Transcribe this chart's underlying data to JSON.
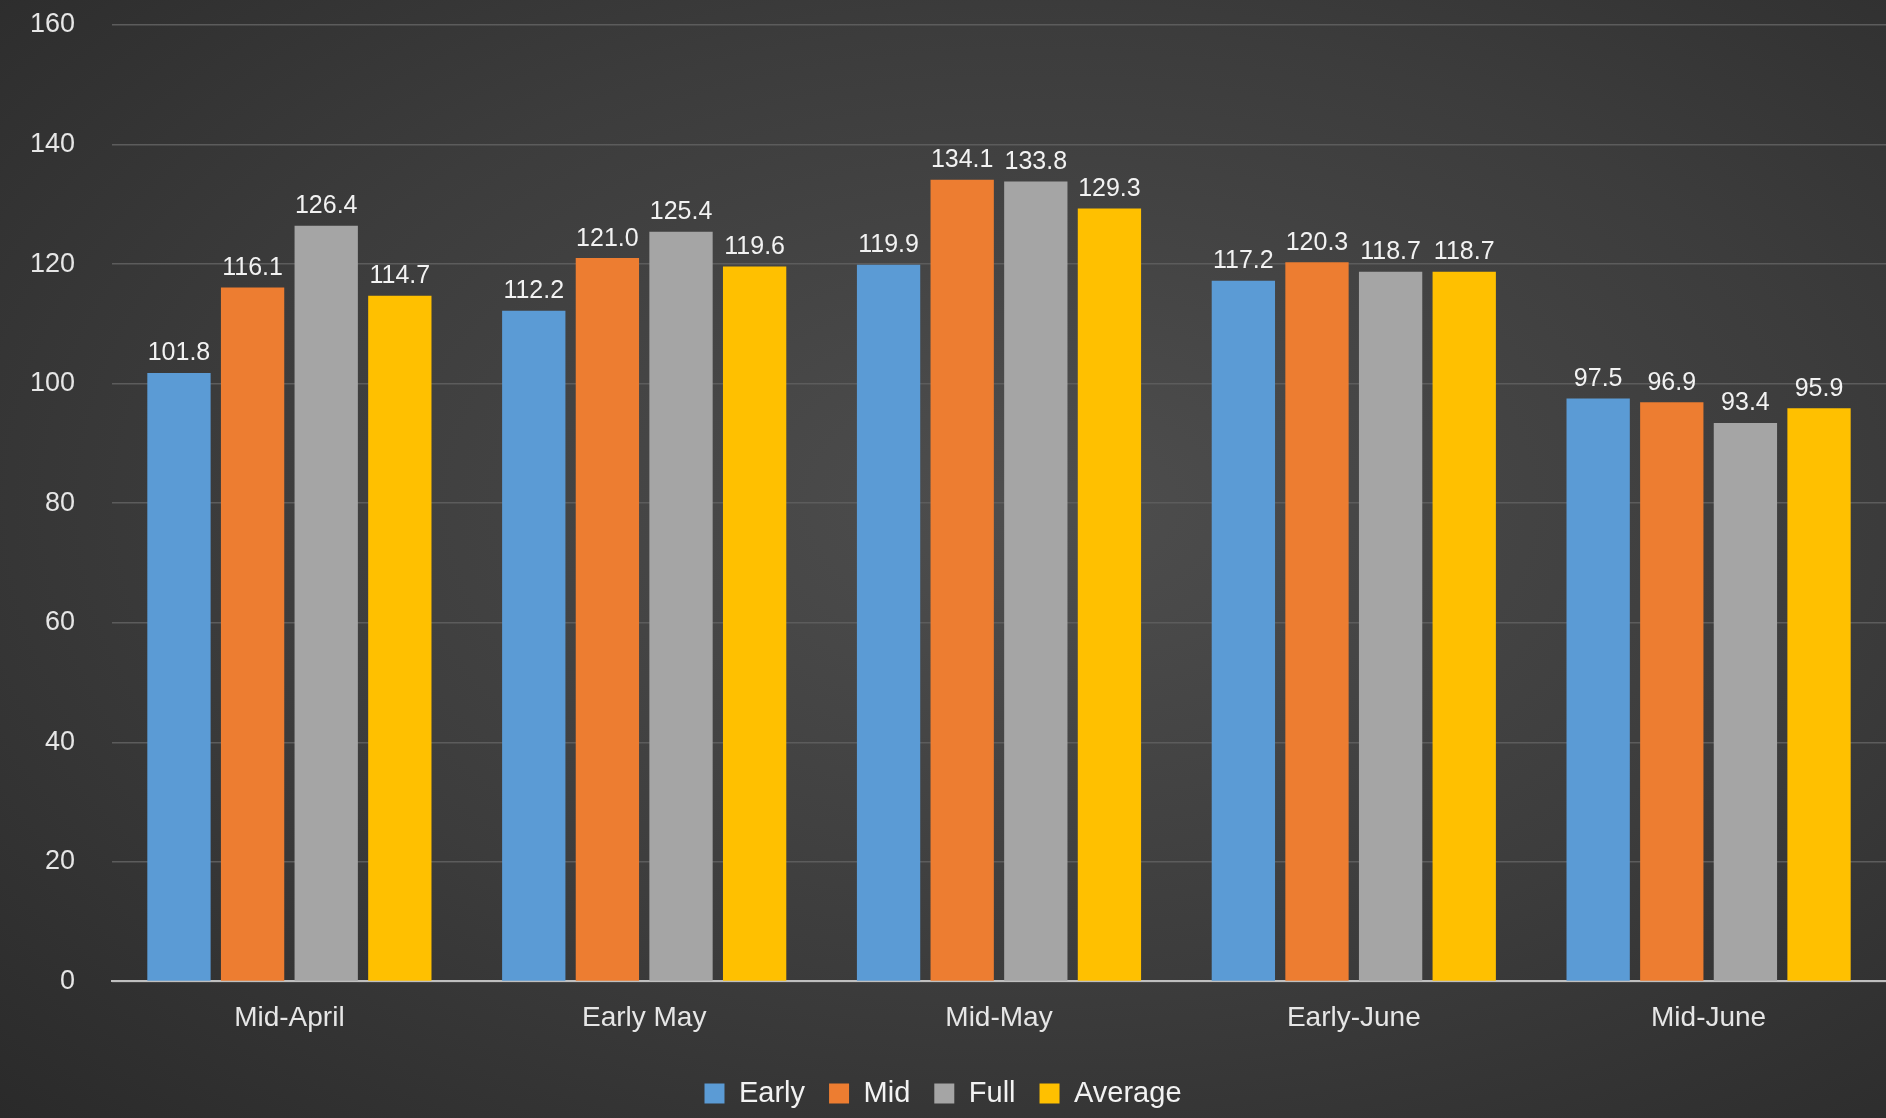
{
  "chart_data": {
    "type": "bar",
    "categories": [
      "Mid-April",
      "Early May",
      "Mid-May",
      "Early-June",
      "Mid-June"
    ],
    "series": [
      {
        "name": "Early",
        "color": "#5b9bd5",
        "values": [
          101.8,
          112.2,
          119.9,
          117.2,
          97.5
        ],
        "value_labels": [
          "101.8",
          "112.2",
          "119.9",
          "117.2",
          "97.5"
        ]
      },
      {
        "name": "Mid",
        "color": "#ed7d31",
        "values": [
          116.1,
          121.0,
          134.1,
          120.3,
          96.9
        ],
        "value_labels": [
          "116.1",
          "121.0",
          "134.1",
          "120.3",
          "96.9"
        ]
      },
      {
        "name": "Full",
        "color": "#a5a5a5",
        "values": [
          126.4,
          125.4,
          133.8,
          118.7,
          93.4
        ],
        "value_labels": [
          "126.4",
          "125.4",
          "133.8",
          "118.7",
          "93.4"
        ]
      },
      {
        "name": "Average",
        "color": "#ffc000",
        "values": [
          114.7,
          119.6,
          129.3,
          118.7,
          95.9
        ],
        "value_labels": [
          "114.7",
          "119.6",
          "129.3",
          "118.7",
          "95.9"
        ]
      }
    ],
    "ylim": [
      0,
      160
    ],
    "yticks": [
      0,
      20,
      40,
      60,
      80,
      100,
      120,
      140,
      160
    ],
    "grid": "y",
    "legend": "bottom"
  }
}
